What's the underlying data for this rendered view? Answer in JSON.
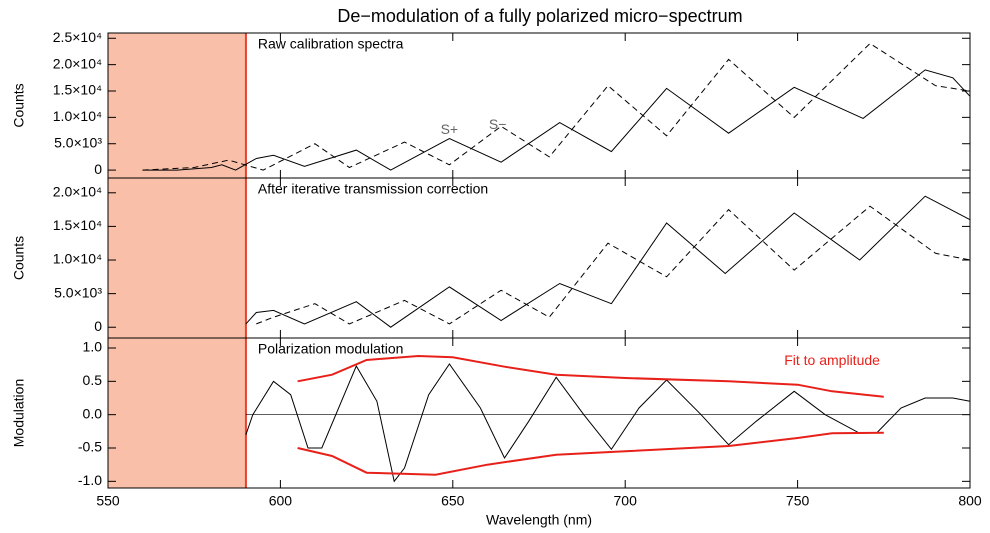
{
  "chart_data": [
    {
      "type": "line",
      "title": "De−modulation of a fully polarized micro−spectrum",
      "label": "Raw calibration spectra",
      "ylabel": "Counts",
      "xlim": [
        550,
        800
      ],
      "xticks": [
        550,
        600,
        650,
        700,
        750,
        800
      ],
      "ylim": [
        -1500,
        26000
      ],
      "yticks": [
        0,
        {
          "value": 5000,
          "label": "5.0×10³"
        },
        {
          "value": 10000,
          "label": "1.0×10⁴"
        },
        {
          "value": 15000,
          "label": "1.5×10⁴"
        },
        {
          "value": 20000,
          "label": "2.0×10⁴"
        },
        {
          "value": 25000,
          "label": "2.5×10⁴"
        }
      ],
      "shaded_range": [
        550,
        590
      ],
      "shade_color": "#f9bfa8",
      "marker_line": 590,
      "marker_color": "#e8412a",
      "series": [
        {
          "color": "#000000",
          "dash": false,
          "x": [
            560,
            570,
            580,
            583,
            587,
            593,
            598,
            607,
            622,
            632,
            649,
            664,
            681,
            696,
            712,
            730,
            749,
            769,
            787,
            795,
            800
          ],
          "values": [
            0,
            0,
            500,
            1000,
            0,
            2200,
            2800,
            700,
            3800,
            0,
            6000,
            1500,
            9000,
            3500,
            15500,
            7000,
            15700,
            9800,
            19000,
            17500,
            14000
          ]
        },
        {
          "color": "#000000",
          "dash": true,
          "x": [
            560,
            575,
            585,
            595,
            610,
            620,
            636,
            649,
            664,
            678,
            695,
            712,
            730,
            749,
            771,
            790,
            800
          ],
          "values": [
            0,
            500,
            1900,
            0,
            5000,
            500,
            5300,
            1000,
            8300,
            2500,
            16000,
            6500,
            21000,
            10000,
            24000,
            16000,
            15000
          ]
        }
      ],
      "annotations": [
        {
          "text": "S+",
          "x": 649,
          "y": 7500
        },
        {
          "text": "S−",
          "x": 663,
          "y": 8500
        }
      ]
    },
    {
      "type": "line",
      "label": "After iterative transmission correction",
      "ylabel": "Counts",
      "xlim": [
        550,
        800
      ],
      "xticks": [
        550,
        600,
        650,
        700,
        750,
        800
      ],
      "ylim": [
        -1600,
        22200
      ],
      "yticks": [
        0,
        {
          "value": 5000,
          "label": "5.0×10³"
        },
        {
          "value": 10000,
          "label": "1.0×10⁴"
        },
        {
          "value": 15000,
          "label": "1.5×10⁴"
        },
        {
          "value": 20000,
          "label": "2.0×10⁴"
        }
      ],
      "shaded_range": [
        550,
        590
      ],
      "shade_color": "#f9bfa8",
      "marker_line": 590,
      "marker_color": "#e8412a",
      "series": [
        {
          "color": "#000000",
          "dash": false,
          "x": [
            590,
            593,
            598,
            607,
            622,
            632,
            649,
            664,
            681,
            696,
            712,
            729,
            749,
            768,
            787,
            800
          ],
          "values": [
            500,
            2200,
            2500,
            500,
            3800,
            0,
            6000,
            1000,
            6500,
            3500,
            15500,
            8000,
            17000,
            10000,
            19500,
            16000
          ]
        },
        {
          "color": "#000000",
          "dash": true,
          "x": [
            593,
            598,
            610,
            620,
            636,
            649,
            664,
            678,
            695,
            712,
            730,
            749,
            771,
            790,
            800
          ],
          "values": [
            500,
            1500,
            3500,
            500,
            4000,
            500,
            5500,
            1500,
            12500,
            7500,
            17500,
            8500,
            18000,
            11000,
            10000
          ]
        }
      ]
    },
    {
      "type": "line",
      "label": "Polarization modulation",
      "ylabel": "Modulation",
      "xlabel": "Wavelength (nm)",
      "xlim": [
        550,
        800
      ],
      "xticks": [
        550,
        600,
        650,
        700,
        750,
        800
      ],
      "ylim": [
        -1.1,
        1.15
      ],
      "yticks": [
        {
          "value": -1,
          "label": "-1.0"
        },
        -0.5,
        {
          "value": 0,
          "label": "0.0"
        },
        0.5,
        {
          "value": 1,
          "label": "1.0"
        }
      ],
      "shaded_range": [
        550,
        590
      ],
      "shade_color": "#f9bfa8",
      "marker_line": 590,
      "marker_color": "#e8412a",
      "hline": 0,
      "series": [
        {
          "color": "#000000",
          "dash": false,
          "x": [
            590,
            592,
            598,
            603,
            608,
            612,
            622,
            628,
            633,
            636,
            643,
            649,
            658,
            665,
            672,
            680,
            688,
            696,
            704,
            712,
            722,
            730,
            738,
            749,
            758,
            768,
            773,
            780,
            787,
            795,
            800
          ],
          "values": [
            -0.3,
            0,
            0.5,
            0.3,
            -0.5,
            -0.5,
            0.73,
            0.2,
            -1,
            -0.8,
            0.3,
            0.76,
            0.1,
            -0.65,
            -0.1,
            0.56,
            0,
            -0.52,
            0.1,
            0.52,
            0,
            -0.45,
            -0.1,
            0.35,
            0,
            -0.28,
            -0.27,
            0.1,
            0.25,
            0.25,
            0.2
          ]
        },
        {
          "color": "#e8201a",
          "dash": false,
          "width": 2,
          "x": [
            605,
            615,
            625,
            640,
            650,
            665,
            680,
            700,
            730,
            750,
            760,
            775
          ],
          "values": [
            0.5,
            0.6,
            0.82,
            0.88,
            0.86,
            0.72,
            0.6,
            0.55,
            0.5,
            0.45,
            0.35,
            0.27
          ]
        },
        {
          "color": "#e8201a",
          "dash": false,
          "width": 2,
          "x": [
            605,
            615,
            625,
            645,
            660,
            680,
            700,
            730,
            750,
            760,
            775
          ],
          "values": [
            -0.5,
            -0.62,
            -0.87,
            -0.9,
            -0.75,
            -0.6,
            -0.55,
            -0.47,
            -0.35,
            -0.28,
            -0.27
          ]
        }
      ],
      "annotations": [
        {
          "text": "Fit to amplitude",
          "x": 760,
          "y": 0.8,
          "color": "#e8201a"
        }
      ]
    }
  ]
}
